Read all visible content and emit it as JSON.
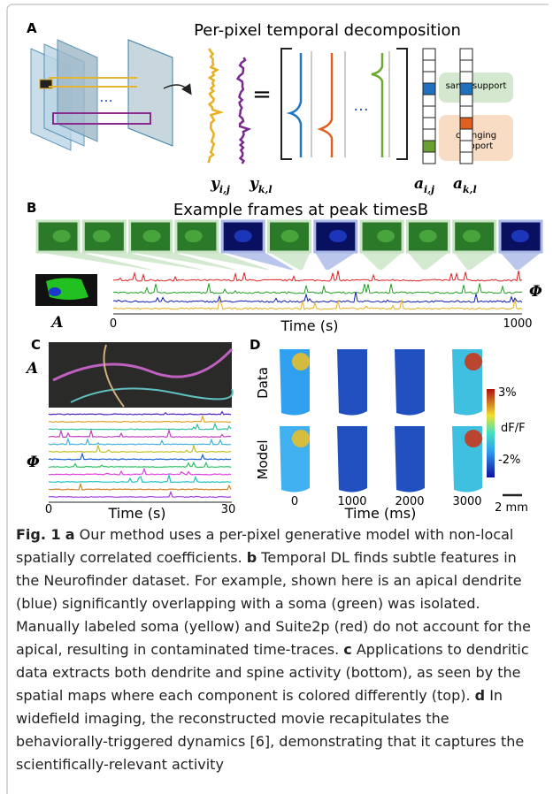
{
  "panel_a": {
    "letter": "A",
    "title": "Per-pixel temporal decomposition",
    "equals": "=",
    "ellipsis": "...",
    "same_support": "same support",
    "changing_support": "changing support",
    "math_labels": [
      {
        "symbol": "y",
        "subscript": "i,j"
      },
      {
        "symbol": "y",
        "subscript": "k,l"
      },
      {
        "symbol": "a",
        "subscript": "i,j"
      },
      {
        "symbol": "a",
        "subscript": "k,l"
      }
    ]
  },
  "panel_b": {
    "letter": "B",
    "title": "Example frames at peak timesB",
    "map_label": "A",
    "trace_label": "Φ",
    "x_start": "0",
    "x_end": "1000",
    "x_label": "Time (s)"
  },
  "panel_c": {
    "letter": "C",
    "map_label": "A",
    "trace_label": "Φ",
    "x_start": "0",
    "x_end": "30",
    "x_label": "Time (s)"
  },
  "panel_d": {
    "letter": "D",
    "row_labels": [
      "Data",
      "Model"
    ],
    "colorbar_max": "3%",
    "colorbar_label": "dF/F",
    "colorbar_min": "-2%",
    "time_labels": [
      "0",
      "1000",
      "2000",
      "3000"
    ],
    "x_label": "Time (ms)",
    "scale_bar": "2 mm"
  },
  "caption": {
    "label": "Fig. 1",
    "parts": [
      {
        "letter": "a",
        "text": "Our method uses a per-pixel generative model with non-local spatially correlated coefficients."
      },
      {
        "letter": "b",
        "text": "Temporal DL finds subtle features in the Neurofinder dataset. For example, shown here is an apical dendrite (blue) significantly overlapping with a soma (green) was isolated. Manually labeled soma (yellow) and Suite2p (red) do not account for the apical, resulting in contaminated time-traces."
      },
      {
        "letter": "c",
        "text": "Applications to dendritic data extracts both dendrite and spine activity (bottom), as seen by the spatial maps where each component is colored differently (top)."
      },
      {
        "letter": "d",
        "text": "In widefield imaging, the reconstructed movie recapitulates the behaviorally-triggered dynamics [6], demonstrating that it captures the scientifically-relevant activity"
      }
    ]
  }
}
